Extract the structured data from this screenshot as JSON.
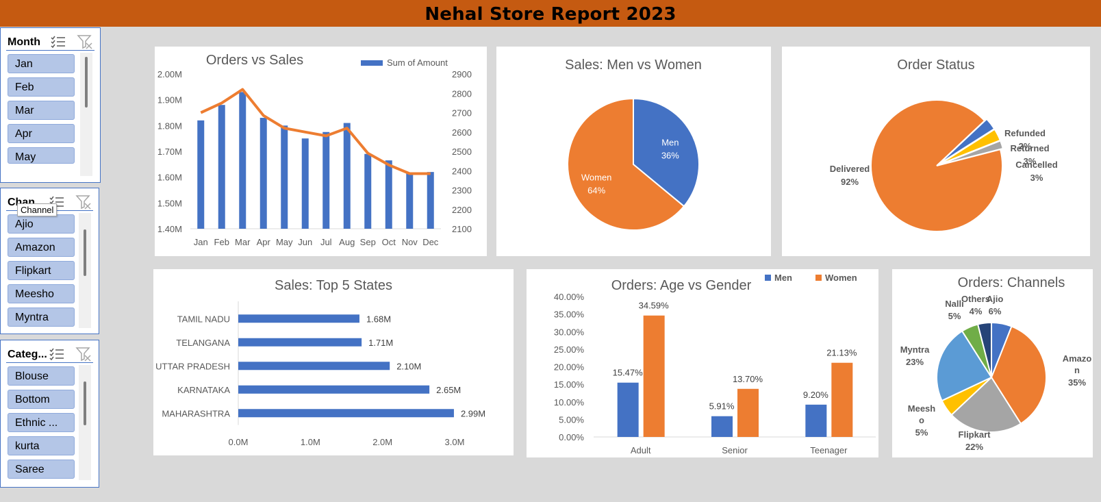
{
  "title": "Nehal Store Report 2023",
  "slicers": [
    {
      "title": "Month",
      "items": [
        "Jan",
        "Feb",
        "Mar",
        "Apr",
        "May"
      ]
    },
    {
      "title": "Chan...",
      "tooltip": "Channel",
      "items": [
        "Ajio",
        "Amazon",
        "Flipkart",
        "Meesho",
        "Myntra"
      ]
    },
    {
      "title": "Categ...",
      "items": [
        "Blouse",
        "Bottom",
        "Ethnic ...",
        "kurta",
        "Saree"
      ]
    }
  ],
  "colors": {
    "blue": "#4472c4",
    "orange": "#ed7d31",
    "gray": "#a5a5a5",
    "yellow": "#ffc000",
    "lightblue": "#5b9bd5",
    "green": "#70ad47",
    "navy": "#264478",
    "banner": "#c55a11"
  },
  "chart_data": [
    {
      "id": "orders_vs_sales",
      "type": "bar",
      "title": "Orders vs Sales",
      "categories": [
        "Jan",
        "Feb",
        "Mar",
        "Apr",
        "May",
        "Jun",
        "Jul",
        "Aug",
        "Sep",
        "Oct",
        "Nov",
        "Dec"
      ],
      "series": [
        {
          "name": "Sum of Amount",
          "kind": "bar",
          "axis": "left",
          "values": [
            1.82,
            1.88,
            1.93,
            1.83,
            1.8,
            1.75,
            1.775,
            1.81,
            1.69,
            1.665,
            1.615,
            1.62
          ]
        },
        {
          "kind": "line",
          "axis": "right",
          "values": [
            2700,
            2750,
            2820,
            2685,
            2620,
            2600,
            2580,
            2620,
            2490,
            2430,
            2385,
            2385
          ]
        }
      ],
      "left_axis": {
        "min": 1.4,
        "max": 2.0,
        "ticks": [
          "1.40M",
          "1.50M",
          "1.60M",
          "1.70M",
          "1.80M",
          "1.90M",
          "2.00M"
        ]
      },
      "right_axis": {
        "min": 2100,
        "max": 2900,
        "ticks": [
          "2100",
          "2200",
          "2300",
          "2400",
          "2500",
          "2600",
          "2700",
          "2800",
          "2900"
        ]
      },
      "legend": "top-right"
    },
    {
      "id": "men_vs_women",
      "type": "pie",
      "title": "Sales: Men vs Women",
      "slices": [
        {
          "label": "Men",
          "pct": "36%",
          "value": 36
        },
        {
          "label": "Women",
          "pct": "64%",
          "value": 64
        }
      ]
    },
    {
      "id": "order_status",
      "type": "pie",
      "title": "Order Status",
      "slices": [
        {
          "label": "Delivered",
          "pct": "92%",
          "value": 92
        },
        {
          "label": "Cancelled",
          "pct": "3%",
          "value": 3
        },
        {
          "label": "Returned",
          "pct": "3%",
          "value": 3
        },
        {
          "label": "Refunded",
          "pct": "2%",
          "value": 2
        }
      ]
    },
    {
      "id": "top5_states",
      "type": "bar",
      "orientation": "horizontal",
      "title": "Sales: Top 5 States",
      "categories": [
        "TAMIL NADU",
        "TELANGANA",
        "UTTAR PRADESH",
        "KARNATAKA",
        "MAHARASHTRA"
      ],
      "values": [
        1.68,
        1.71,
        2.1,
        2.65,
        2.99
      ],
      "value_labels": [
        "1.68M",
        "1.71M",
        "2.10M",
        "2.65M",
        "2.99M"
      ],
      "xlim": [
        0,
        3
      ],
      "x_ticks": [
        "0.0M",
        "1.0M",
        "2.0M",
        "3.0M"
      ]
    },
    {
      "id": "age_vs_gender",
      "type": "bar",
      "title": "Orders: Age vs Gender",
      "categories": [
        "Adult",
        "Senior",
        "Teenager"
      ],
      "series": [
        {
          "name": "Men",
          "values": [
            15.47,
            5.91,
            9.2
          ],
          "labels": [
            "15.47%",
            "5.91%",
            "9.20%"
          ]
        },
        {
          "name": "Women",
          "values": [
            34.59,
            13.7,
            21.13
          ],
          "labels": [
            "34.59%",
            "13.70%",
            "21.13%"
          ]
        }
      ],
      "ylim": [
        0,
        40
      ],
      "y_ticks": [
        "0.00%",
        "5.00%",
        "10.00%",
        "15.00%",
        "20.00%",
        "25.00%",
        "30.00%",
        "35.00%",
        "40.00%"
      ],
      "legend": "top-right"
    },
    {
      "id": "channels",
      "type": "pie",
      "title": "Orders: Channels",
      "slices": [
        {
          "label": "Ajio",
          "pct": "6%",
          "value": 6
        },
        {
          "label": "Amazon",
          "pct": "35%",
          "value": 35
        },
        {
          "label": "Flipkart",
          "pct": "22%",
          "value": 22
        },
        {
          "label": "Meesho",
          "pct": "5%",
          "value": 5
        },
        {
          "label": "Myntra",
          "pct": "23%",
          "value": 23
        },
        {
          "label": "Nalli",
          "pct": "5%",
          "value": 5
        },
        {
          "label": "Others",
          "pct": "4%",
          "value": 4
        }
      ]
    }
  ]
}
